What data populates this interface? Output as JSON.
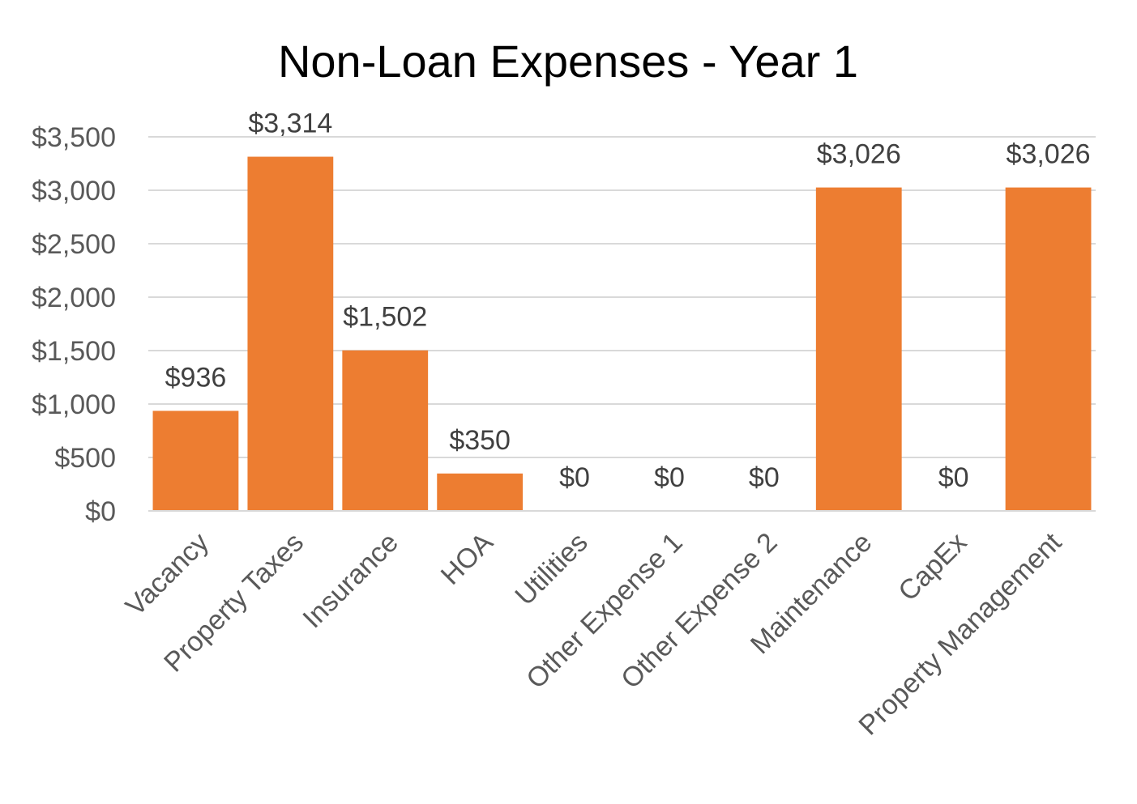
{
  "chart_data": {
    "type": "bar",
    "title": "Non-Loan Expenses - Year 1",
    "categories": [
      "Vacancy",
      "Property Taxes",
      "Insurance",
      "HOA",
      "Utilities",
      "Other Expense 1",
      "Other Expense 2",
      "Maintenance",
      "CapEx",
      "Property Management"
    ],
    "values": [
      936,
      3314,
      1502,
      350,
      0,
      0,
      0,
      3026,
      0,
      3026
    ],
    "data_labels": [
      "$936",
      "$3,314",
      "$1,502",
      "$350",
      "$0",
      "$0",
      "$0",
      "$3,026",
      "$0",
      "$3,026"
    ],
    "yticks": [
      0,
      500,
      1000,
      1500,
      2000,
      2500,
      3000,
      3500
    ],
    "ytick_labels": [
      "$0",
      "$500",
      "$1,000",
      "$1,500",
      "$2,000",
      "$2,500",
      "$3,000",
      "$3,500"
    ],
    "ylim": [
      0,
      3500
    ],
    "grid": true,
    "legend": "none",
    "bar_color": "#ED7D31"
  }
}
